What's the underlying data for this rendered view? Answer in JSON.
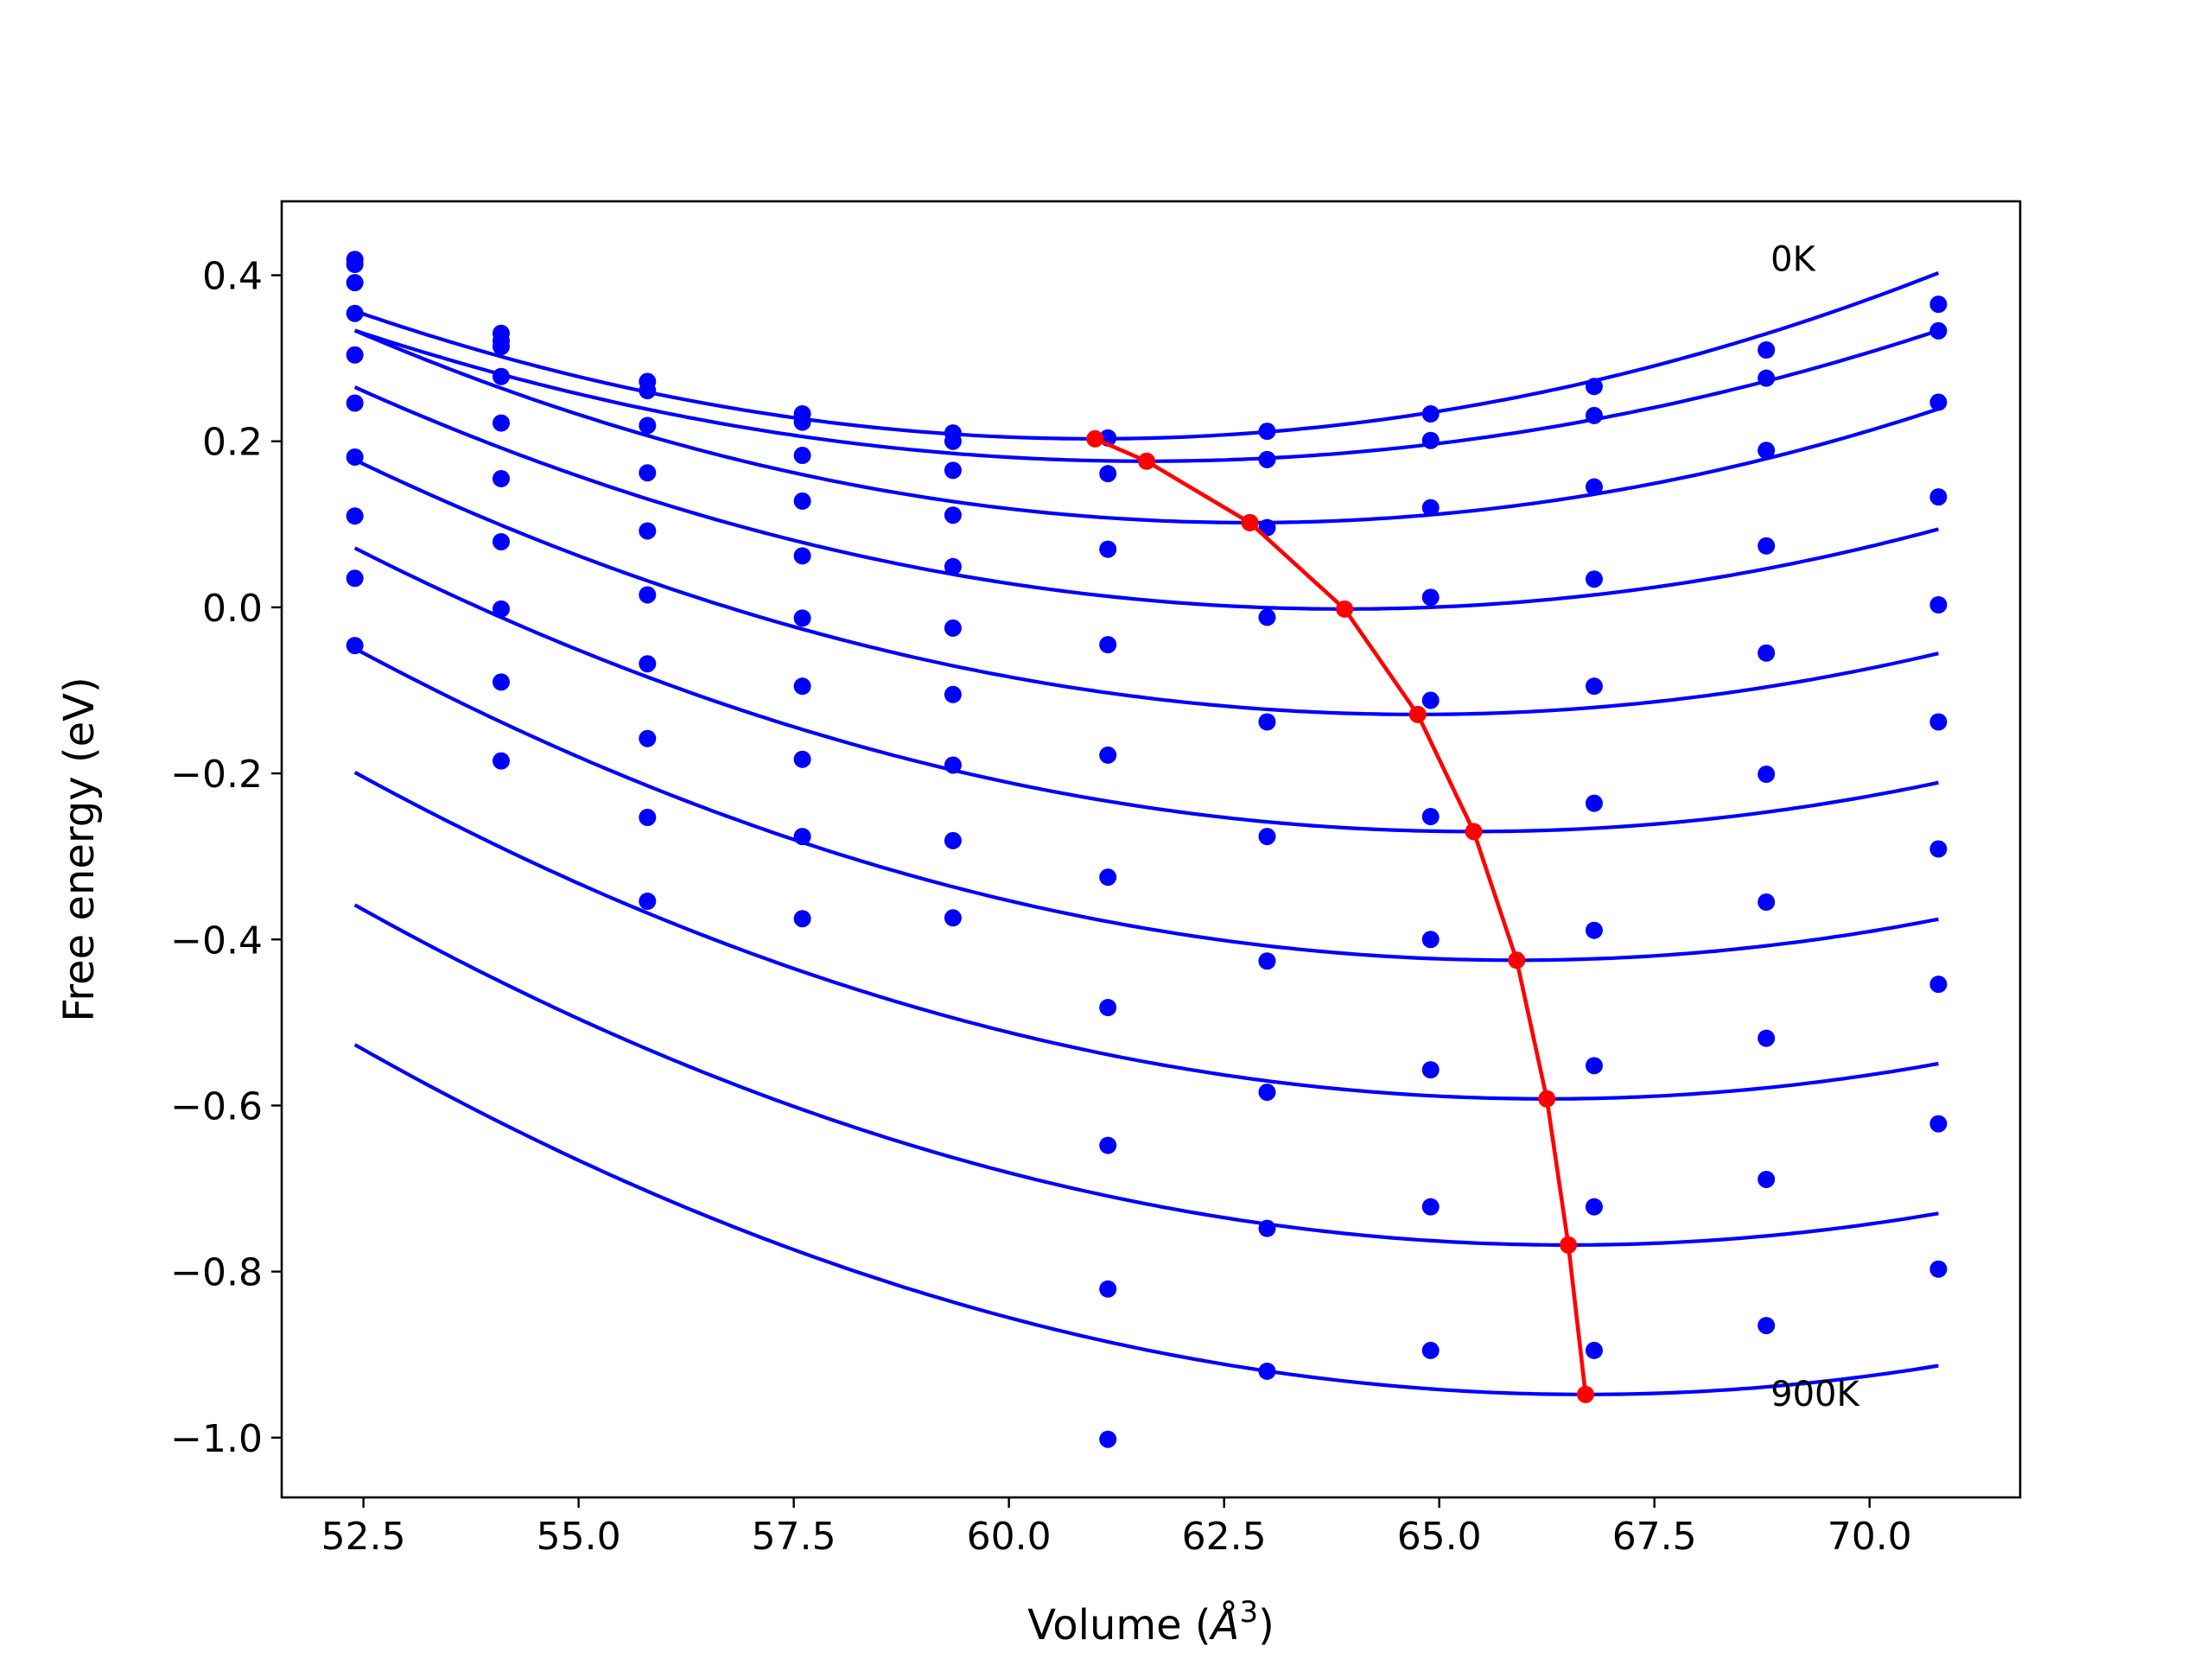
{
  "chart_data": {
    "type": "scatter",
    "xlabel": "Volume (",
    "xlabel_symbol": "Å",
    "xlabel_power": "3",
    "xlabel_close": ")",
    "ylabel": "Free energy (eV)",
    "xlim": [
      51.55,
      71.75
    ],
    "ylim": [
      -1.072,
      0.489
    ],
    "x_ticks": [
      52.5,
      55.0,
      57.5,
      60.0,
      62.5,
      65.0,
      67.5,
      70.0
    ],
    "x_tick_labels": [
      "52.5",
      "55.0",
      "57.5",
      "60.0",
      "62.5",
      "65.0",
      "67.5",
      "70.0"
    ],
    "y_ticks": [
      0.4,
      0.2,
      0.0,
      -0.2,
      -0.4,
      -0.6,
      -0.8,
      -1.0
    ],
    "y_tick_labels": [
      "0.4",
      "0.2",
      "0.0",
      "−0.2",
      "−0.4",
      "−0.6",
      "−0.8",
      "−1.0"
    ],
    "grid": false,
    "annotations": [
      {
        "text": "0K",
        "x": 68.85,
        "y": 0.42
      },
      {
        "text": "900K",
        "x": 68.85,
        "y": -0.947
      }
    ],
    "colors": {
      "curves": "#0000ff",
      "points": "#0000ff",
      "minimum_path": "#ff0000"
    },
    "volumes": [
      52.4,
      54.1,
      55.8,
      57.6,
      59.35,
      61.15,
      63.0,
      64.9,
      66.8,
      68.8,
      70.8
    ],
    "series": [
      {
        "points": [
          0.419,
          0.33,
          0.272,
          0.233,
          0.21,
          0.204,
          0.212,
          0.233,
          0.266,
          0.31,
          0.365
        ],
        "fit": {
          "vmin": 61.0,
          "fmin": 0.203,
          "a": 0.00208
        }
      },
      {
        "points": [
          0.413,
          0.321,
          0.261,
          0.223,
          0.2,
          0.161,
          0.178,
          0.201,
          0.231,
          0.276,
          0.333
        ],
        "fit": {
          "vmin": 61.6,
          "fmin": 0.176,
          "a": 0.00186
        }
      },
      {
        "points": [
          0.391,
          0.314,
          0.219,
          0.183,
          0.165,
          0.07,
          0.096,
          0.12,
          0.145,
          0.189,
          0.247
        ],
        "fit": {
          "vmin": 62.8,
          "fmin": 0.102,
          "a": 0.00214
        }
      },
      {
        "points": [
          0.354,
          0.278,
          0.162,
          0.128,
          0.111,
          -0.045,
          -0.012,
          0.012,
          0.034,
          0.074,
          0.133
        ],
        "fit": {
          "vmin": 63.9,
          "fmin": -0.002,
          "a": 0.00202
        }
      },
      {
        "points": [
          0.304,
          0.222,
          0.092,
          0.062,
          0.049,
          -0.178,
          -0.138,
          -0.112,
          -0.095,
          -0.055,
          0.003
        ],
        "fit": {
          "vmin": 64.75,
          "fmin": -0.129,
          "a": 0.00201
        }
      },
      {
        "points": [
          0.246,
          0.155,
          0.015,
          -0.013,
          -0.025,
          -0.325,
          -0.276,
          -0.252,
          -0.236,
          -0.201,
          -0.138
        ],
        "fit": {
          "vmin": 65.4,
          "fmin": -0.27,
          "a": 0.00202
        }
      },
      {
        "points": [
          0.181,
          0.079,
          -0.068,
          -0.095,
          -0.105,
          -0.482,
          -0.426,
          -0.4,
          -0.389,
          -0.355,
          -0.291
        ],
        "fit": {
          "vmin": 65.9,
          "fmin": -0.425,
          "a": 0.00206
        }
      },
      {
        "points": [
          0.11,
          -0.002,
          -0.158,
          -0.183,
          -0.19,
          -0.648,
          -0.584,
          -0.557,
          -0.552,
          -0.519,
          -0.454
        ],
        "fit": {
          "vmin": 66.25,
          "fmin": -0.592,
          "a": 0.00205
        }
      },
      {
        "points": [
          0.035,
          -0.09,
          -0.253,
          -0.276,
          -0.281,
          -0.821,
          -0.748,
          -0.722,
          -0.722,
          -0.689,
          -0.622
        ],
        "fit": {
          "vmin": 66.5,
          "fmin": -0.768,
          "a": 0.00206
        }
      },
      {
        "points": [
          -0.046,
          -0.185,
          -0.354,
          -0.375,
          -0.374,
          -1.002,
          -0.92,
          -0.895,
          -0.895,
          -0.865,
          -0.797
        ],
        "fit": {
          "vmin": 66.7,
          "fmin": -0.948,
          "a": 0.00206
        }
      }
    ],
    "minimum_path": {
      "x": [
        61.0,
        61.6,
        62.8,
        63.9,
        64.75,
        65.4,
        65.9,
        66.25,
        66.5,
        66.7
      ],
      "y": [
        0.203,
        0.176,
        0.102,
        -0.002,
        -0.129,
        -0.27,
        -0.425,
        -0.592,
        -0.768,
        -0.948
      ]
    }
  }
}
